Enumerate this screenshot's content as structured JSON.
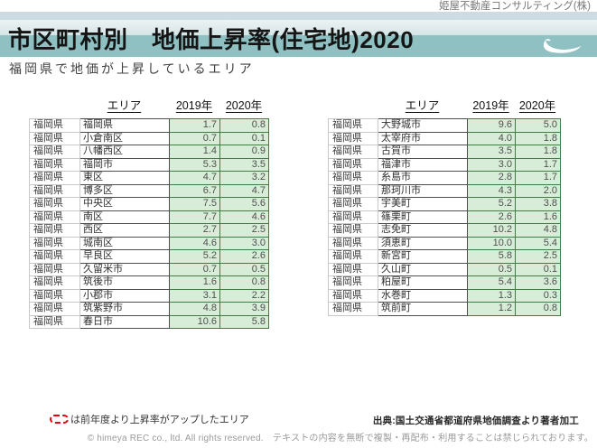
{
  "page": {
    "company": "姫屋不動産コンサルティング(株)",
    "title": "市区町村別　地価上昇率(住宅地)2020",
    "subtitle": "福岡県で地価が上昇しているエリア"
  },
  "columns": {
    "area": "エリア",
    "y2019": "2019年",
    "y2020": "2020年"
  },
  "tables": {
    "left": {
      "rows": [
        {
          "pref": "福岡県",
          "area": "福岡県",
          "y2019": "1.7",
          "y2020": "0.8"
        },
        {
          "pref": "福岡県",
          "area": "小倉南区",
          "y2019": "0.7",
          "y2020": "0.1"
        },
        {
          "pref": "福岡県",
          "area": "八幡西区",
          "y2019": "1.4",
          "y2020": "0.9"
        },
        {
          "pref": "福岡県",
          "area": "福岡市",
          "y2019": "5.3",
          "y2020": "3.5"
        },
        {
          "pref": "福岡県",
          "area": "東区",
          "y2019": "4.7",
          "y2020": "3.2"
        },
        {
          "pref": "福岡県",
          "area": "博多区",
          "y2019": "6.7",
          "y2020": "4.7"
        },
        {
          "pref": "福岡県",
          "area": "中央区",
          "y2019": "7.5",
          "y2020": "5.6"
        },
        {
          "pref": "福岡県",
          "area": "南区",
          "y2019": "7.7",
          "y2020": "4.6"
        },
        {
          "pref": "福岡県",
          "area": "西区",
          "y2019": "2.7",
          "y2020": "2.5"
        },
        {
          "pref": "福岡県",
          "area": "城南区",
          "y2019": "4.6",
          "y2020": "3.0"
        },
        {
          "pref": "福岡県",
          "area": "早良区",
          "y2019": "5.2",
          "y2020": "2.6"
        },
        {
          "pref": "福岡県",
          "area": "久留米市",
          "y2019": "0.7",
          "y2020": "0.5"
        },
        {
          "pref": "福岡県",
          "area": "筑後市",
          "y2019": "1.6",
          "y2020": "0.8"
        },
        {
          "pref": "福岡県",
          "area": "小郡市",
          "y2019": "3.1",
          "y2020": "2.2"
        },
        {
          "pref": "福岡県",
          "area": "筑紫野市",
          "y2019": "4.8",
          "y2020": "3.9"
        },
        {
          "pref": "福岡県",
          "area": "春日市",
          "y2019": "10.6",
          "y2020": "5.8"
        }
      ]
    },
    "right": {
      "rows": [
        {
          "pref": "福岡県",
          "area": "大野城市",
          "y2019": "9.6",
          "y2020": "5.0"
        },
        {
          "pref": "福岡県",
          "area": "太宰府市",
          "y2019": "4.0",
          "y2020": "1.8"
        },
        {
          "pref": "福岡県",
          "area": "古賀市",
          "y2019": "3.5",
          "y2020": "1.8"
        },
        {
          "pref": "福岡県",
          "area": "福津市",
          "y2019": "3.0",
          "y2020": "1.7"
        },
        {
          "pref": "福岡県",
          "area": "糸島市",
          "y2019": "2.8",
          "y2020": "1.7"
        },
        {
          "pref": "福岡県",
          "area": "那珂川市",
          "y2019": "4.3",
          "y2020": "2.0"
        },
        {
          "pref": "福岡県",
          "area": "宇美町",
          "y2019": "5.2",
          "y2020": "3.8"
        },
        {
          "pref": "福岡県",
          "area": "篠栗町",
          "y2019": "2.6",
          "y2020": "1.6"
        },
        {
          "pref": "福岡県",
          "area": "志免町",
          "y2019": "10.2",
          "y2020": "4.8"
        },
        {
          "pref": "福岡県",
          "area": "須恵町",
          "y2019": "10.0",
          "y2020": "5.4"
        },
        {
          "pref": "福岡県",
          "area": "新宮町",
          "y2019": "5.8",
          "y2020": "2.5"
        },
        {
          "pref": "福岡県",
          "area": "久山町",
          "y2019": "0.5",
          "y2020": "0.1"
        },
        {
          "pref": "福岡県",
          "area": "粕屋町",
          "y2019": "5.4",
          "y2020": "3.6"
        },
        {
          "pref": "福岡県",
          "area": "水巻町",
          "y2019": "1.3",
          "y2020": "0.3"
        },
        {
          "pref": "福岡県",
          "area": "筑前町",
          "y2019": "1.2",
          "y2020": "0.8"
        }
      ]
    }
  },
  "footer": {
    "legend_text": "は前年度より上昇率がアップしたエリア",
    "source": "出典:国土交通省都道府県地価調査より著者加工",
    "copyright": "© himeya REC co., ltd. All rights reserved.　テキストの内容を無断で複製・再配布・利用することは禁じられております。"
  },
  "colors": {
    "band_teal": "#8fc0c2",
    "strip_blue": "#cddce2",
    "cell_green_bg": "#d7edd7",
    "cell_green_border": "#3f7d44",
    "legend_red": "#e50012"
  },
  "icons": {
    "boat_logo": "boat-logo-icon",
    "legend_box": "dashed-red-box-icon"
  }
}
